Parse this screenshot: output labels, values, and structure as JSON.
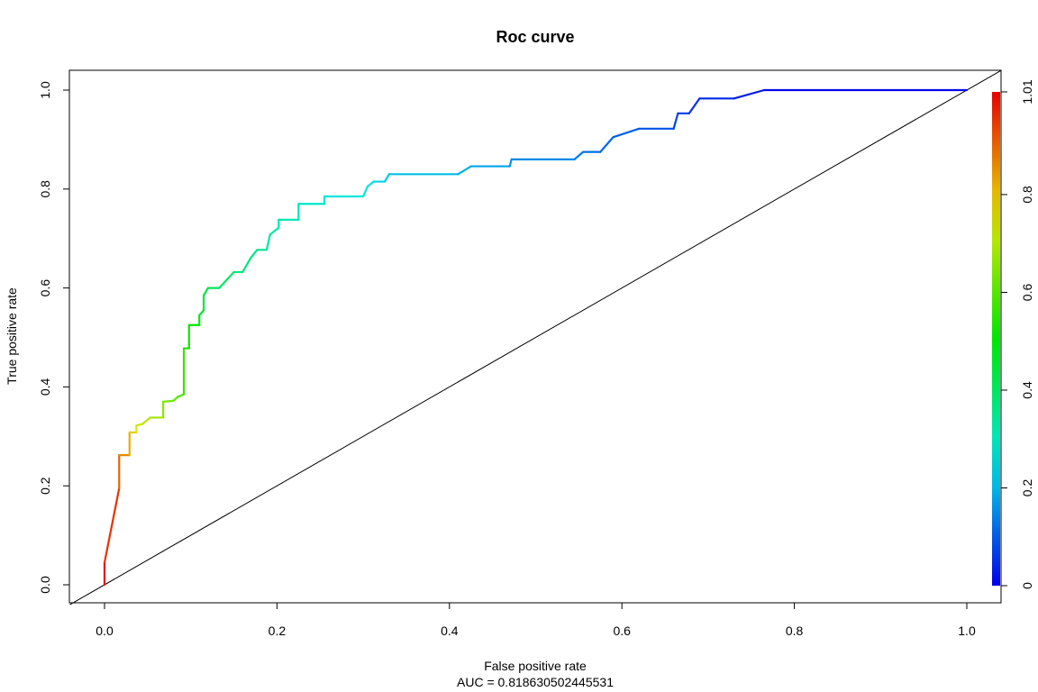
{
  "chart_data": {
    "type": "line",
    "title": "Roc curve",
    "xlabel": "False positive rate",
    "ylabel": "True positive rate",
    "subtitle": "AUC = 0.818630502445531",
    "xlim": [
      0,
      1
    ],
    "ylim": [
      0,
      1
    ],
    "x_ticks": [
      "0.0",
      "0.2",
      "0.4",
      "0.6",
      "0.8",
      "1.0"
    ],
    "y_ticks": [
      "0.0",
      "0.2",
      "0.4",
      "0.6",
      "0.8",
      "1.0"
    ],
    "colorbar": {
      "ticks": [
        "0",
        "0.2",
        "0.4",
        "0.6",
        "0.8",
        "1.01"
      ],
      "range": [
        0,
        1.01
      ],
      "palette": "rainbow"
    },
    "diagonal": {
      "name": "chance line",
      "x": [
        0,
        1
      ],
      "y": [
        0,
        1
      ],
      "color": "#000000"
    },
    "series": [
      {
        "name": "ROC",
        "points": [
          [
            0.0,
            0.0,
            1.01
          ],
          [
            0.0,
            0.045,
            0.99
          ],
          [
            0.017,
            0.195,
            0.92
          ],
          [
            0.017,
            0.262,
            0.88
          ],
          [
            0.029,
            0.262,
            0.84
          ],
          [
            0.029,
            0.308,
            0.8
          ],
          [
            0.037,
            0.308,
            0.77
          ],
          [
            0.037,
            0.322,
            0.74
          ],
          [
            0.044,
            0.325,
            0.72
          ],
          [
            0.053,
            0.338,
            0.7
          ],
          [
            0.068,
            0.338,
            0.67
          ],
          [
            0.068,
            0.37,
            0.65
          ],
          [
            0.08,
            0.372,
            0.62
          ],
          [
            0.085,
            0.38,
            0.6
          ],
          [
            0.092,
            0.385,
            0.58
          ],
          [
            0.092,
            0.478,
            0.55
          ],
          [
            0.098,
            0.478,
            0.53
          ],
          [
            0.098,
            0.525,
            0.51
          ],
          [
            0.11,
            0.525,
            0.49
          ],
          [
            0.11,
            0.545,
            0.47
          ],
          [
            0.115,
            0.555,
            0.46
          ],
          [
            0.115,
            0.585,
            0.44
          ],
          [
            0.12,
            0.6,
            0.42
          ],
          [
            0.133,
            0.6,
            0.4
          ],
          [
            0.15,
            0.632,
            0.38
          ],
          [
            0.16,
            0.632,
            0.37
          ],
          [
            0.17,
            0.662,
            0.36
          ],
          [
            0.177,
            0.677,
            0.35
          ],
          [
            0.188,
            0.677,
            0.34
          ],
          [
            0.192,
            0.708,
            0.33
          ],
          [
            0.202,
            0.722,
            0.32
          ],
          [
            0.202,
            0.738,
            0.31
          ],
          [
            0.225,
            0.738,
            0.3
          ],
          [
            0.225,
            0.77,
            0.29
          ],
          [
            0.255,
            0.77,
            0.28
          ],
          [
            0.255,
            0.785,
            0.27
          ],
          [
            0.3,
            0.785,
            0.26
          ],
          [
            0.305,
            0.805,
            0.25
          ],
          [
            0.312,
            0.815,
            0.24
          ],
          [
            0.325,
            0.815,
            0.23
          ],
          [
            0.33,
            0.83,
            0.22
          ],
          [
            0.41,
            0.83,
            0.2
          ],
          [
            0.425,
            0.846,
            0.19
          ],
          [
            0.47,
            0.846,
            0.17
          ],
          [
            0.472,
            0.86,
            0.16
          ],
          [
            0.545,
            0.86,
            0.14
          ],
          [
            0.555,
            0.875,
            0.13
          ],
          [
            0.575,
            0.875,
            0.12
          ],
          [
            0.59,
            0.905,
            0.11
          ],
          [
            0.62,
            0.922,
            0.1
          ],
          [
            0.66,
            0.922,
            0.08
          ],
          [
            0.665,
            0.953,
            0.07
          ],
          [
            0.678,
            0.953,
            0.06
          ],
          [
            0.69,
            0.983,
            0.05
          ],
          [
            0.73,
            0.983,
            0.04
          ],
          [
            0.765,
            1.0,
            0.02
          ],
          [
            1.0,
            1.0,
            0.0
          ]
        ]
      }
    ]
  }
}
